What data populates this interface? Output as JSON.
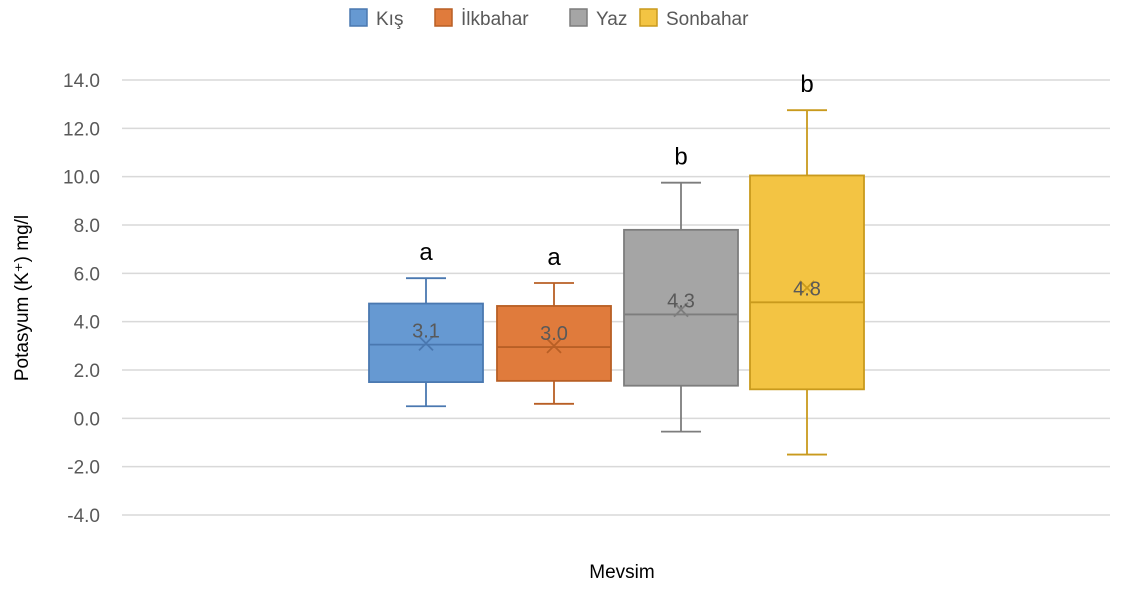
{
  "chart_data": {
    "type": "boxplot",
    "title": "",
    "xlabel": "Mevsim",
    "ylabel": "Potasyum (K⁺) mg/l",
    "ylim": [
      -4.0,
      14.0
    ],
    "y_ticks": [
      "14.0",
      "12.0",
      "10.0",
      "8.0",
      "6.0",
      "4.0",
      "2.0",
      "0.0",
      "-2.0",
      "-4.0"
    ],
    "y_tick_values": [
      14,
      12,
      10,
      8,
      6,
      4,
      2,
      0,
      -2,
      -4
    ],
    "grid": true,
    "legend_position": "top",
    "series": [
      {
        "name": "Kış",
        "color": "#6699d2",
        "stroke": "#4a78b0",
        "min": 0.5,
        "q1": 1.5,
        "median": 3.05,
        "q3": 4.75,
        "max": 5.8,
        "mean": 3.1,
        "median_label": "3.1",
        "letter": "a"
      },
      {
        "name": "İlkbahar",
        "color": "#e07b3c",
        "stroke": "#b85f25",
        "min": 0.6,
        "q1": 1.55,
        "median": 2.95,
        "q3": 4.65,
        "max": 5.6,
        "mean": 3.0,
        "median_label": "3.0",
        "letter": "a"
      },
      {
        "name": "Yaz",
        "color": "#a5a5a5",
        "stroke": "#7d7d7d",
        "min": -0.55,
        "q1": 1.35,
        "median": 4.3,
        "q3": 7.8,
        "max": 9.75,
        "mean": 4.5,
        "median_label": "4.3",
        "letter": "b"
      },
      {
        "name": "Sonbahar",
        "color": "#f3c443",
        "stroke": "#c99a1d",
        "min": -1.5,
        "q1": 1.2,
        "median": 4.8,
        "q3": 10.05,
        "max": 12.75,
        "mean": 5.4,
        "median_label": "4.8",
        "letter": "b"
      }
    ]
  }
}
